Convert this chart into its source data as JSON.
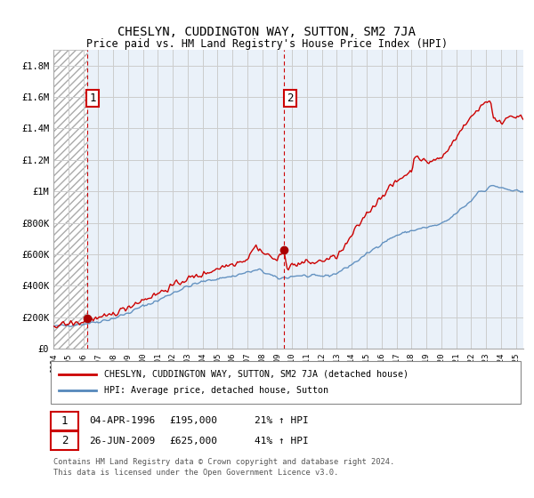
{
  "title": "CHESLYN, CUDDINGTON WAY, SUTTON, SM2 7JA",
  "subtitle": "Price paid vs. HM Land Registry's House Price Index (HPI)",
  "ylabel_ticks": [
    "£0",
    "£200K",
    "£400K",
    "£600K",
    "£800K",
    "£1M",
    "£1.2M",
    "£1.4M",
    "£1.6M",
    "£1.8M"
  ],
  "ytick_values": [
    0,
    200000,
    400000,
    600000,
    800000,
    1000000,
    1200000,
    1400000,
    1600000,
    1800000
  ],
  "ylim": [
    0,
    1900000
  ],
  "xlim_start": 1994.0,
  "xlim_end": 2025.5,
  "sale1_year": 1996.25,
  "sale1_price": 195000,
  "sale1_label": "1",
  "sale2_year": 2009.48,
  "sale2_price": 625000,
  "sale2_label": "2",
  "annotation1_date": "04-APR-1996",
  "annotation1_price": "£195,000",
  "annotation1_hpi": "21% ↑ HPI",
  "annotation2_date": "26-JUN-2009",
  "annotation2_price": "£625,000",
  "annotation2_hpi": "41% ↑ HPI",
  "legend_line1": "CHESLYN, CUDDINGTON WAY, SUTTON, SM2 7JA (detached house)",
  "legend_line2": "HPI: Average price, detached house, Sutton",
  "footer1": "Contains HM Land Registry data © Crown copyright and database right 2024.",
  "footer2": "This data is licensed under the Open Government Licence v3.0.",
  "price_line_color": "#cc0000",
  "hpi_line_color": "#5588bb",
  "hatch_color": "#cccccc",
  "grid_color": "#cccccc",
  "sale_marker_color": "#aa0000",
  "dashed_line_color": "#cc0000",
  "annotation_box_color": "#cc0000",
  "bg_hatch_color": "#dddddd",
  "bg_plot_color": "#dce8f5"
}
